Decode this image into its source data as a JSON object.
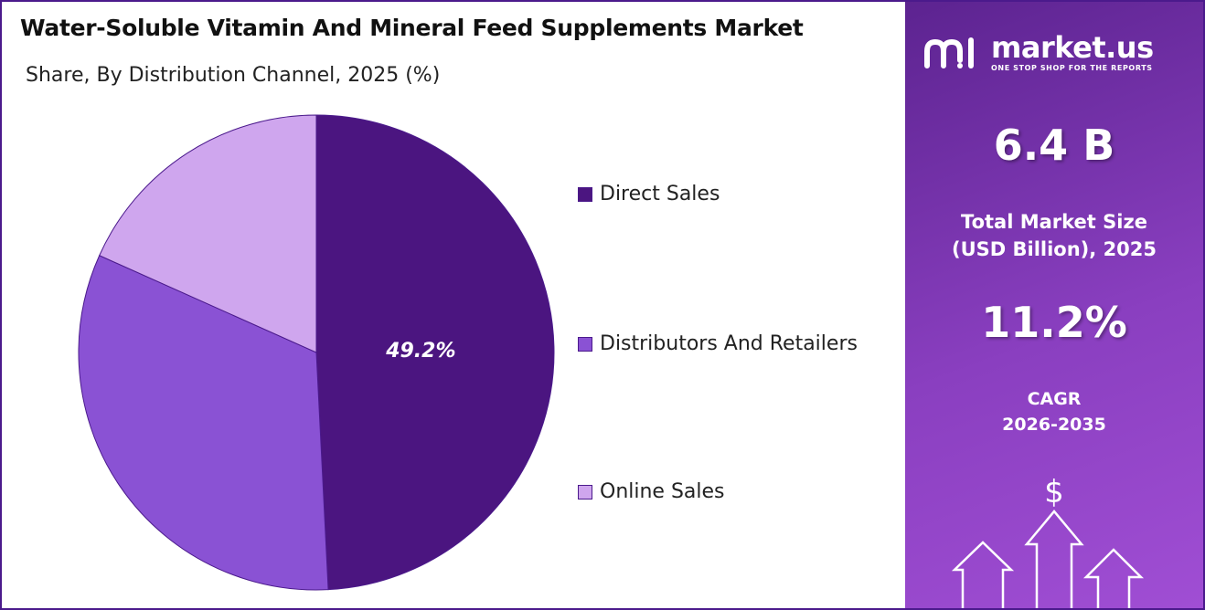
{
  "header": {
    "title": "Water-Soluble Vitamin And Mineral Feed Supplements Market",
    "subtitle": "Share, By Distribution Channel, 2025 (%)"
  },
  "chart_data": {
    "type": "pie",
    "categories": [
      "Direct Sales",
      "Distributors And Retailers",
      "Online Sales"
    ],
    "values": [
      49.2,
      32.5,
      18.3
    ],
    "colors": [
      "#4b1580",
      "#8a52d4",
      "#cfa6ee"
    ],
    "data_labels": [
      "49.2%",
      "",
      ""
    ],
    "legend_position": "right"
  },
  "sidebar": {
    "brand_name": "market.us",
    "brand_tagline": "ONE STOP SHOP FOR THE REPORTS",
    "market_size_value": "6.4 B",
    "market_size_label_1": "Total Market Size",
    "market_size_label_2": "(USD Billion), 2025",
    "cagr_value": "11.2%",
    "cagr_label_1": "CAGR",
    "cagr_label_2": "2026-2035",
    "currency_symbol": "$",
    "logo_icon": "market-us-logo-icon",
    "decoration_icon": "growth-arrows-icon"
  }
}
